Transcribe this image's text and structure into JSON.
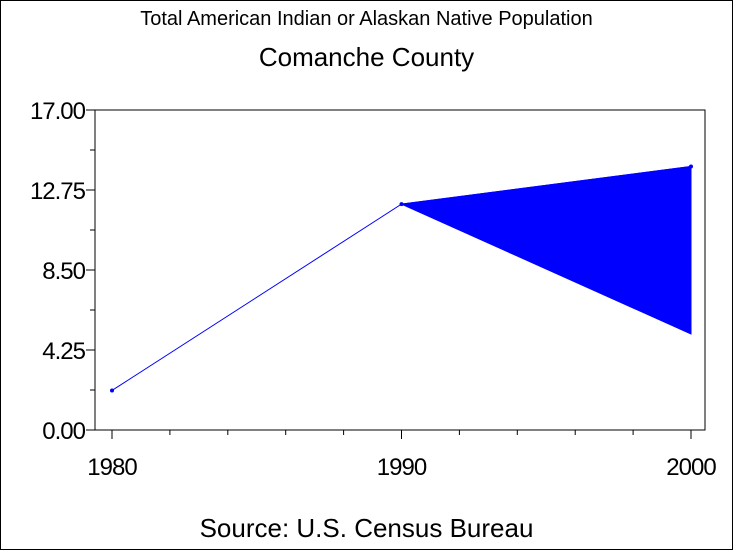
{
  "chart_data": {
    "type": "line",
    "title": "Total American Indian or Alaskan Native Population",
    "subtitle": "Comanche County",
    "xlabel": "",
    "ylabel": "",
    "source": "Source: U.S. Census Bureau",
    "x": [
      1980,
      1990,
      2000
    ],
    "xlim": [
      1980,
      2000
    ],
    "ylim": [
      0,
      17
    ],
    "y_ticks": [
      "0.00",
      "4.25",
      "8.50",
      "12.75",
      "17.00"
    ],
    "x_ticks": [
      "1980",
      "1990",
      "2000"
    ],
    "series": [
      {
        "values": [
          2.1,
          12.0,
          14.0
        ],
        "color": "#0000ff"
      }
    ],
    "band": {
      "x": [
        1990,
        2000
      ],
      "upper": [
        12.0,
        14.0
      ],
      "lower": [
        12.0,
        5.1
      ],
      "color": "#0000ff"
    },
    "grid": false,
    "legend": "none"
  }
}
